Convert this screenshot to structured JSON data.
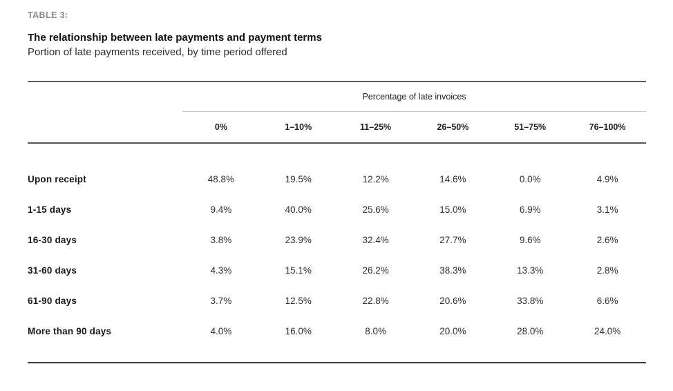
{
  "header": {
    "eyebrow": "TABLE 3:",
    "title": "The relationship between late payments and payment terms",
    "subtitle": "Portion of late payments received, by time period offered"
  },
  "chart_data": {
    "type": "table",
    "title": "The relationship between late payments and payment terms",
    "subtitle": "Portion of late payments received, by time period offered",
    "column_group_label": "Percentage of late invoices",
    "columns": [
      "0%",
      "1–10%",
      "11–25%",
      "26–50%",
      "51–75%",
      "76–100%"
    ],
    "rows": [
      {
        "label": "Upon receipt",
        "values": [
          "48.8%",
          "19.5%",
          "12.2%",
          "14.6%",
          "0.0%",
          "4.9%"
        ]
      },
      {
        "label": "1-15 days",
        "values": [
          "9.4%",
          "40.0%",
          "25.6%",
          "15.0%",
          "6.9%",
          "3.1%"
        ]
      },
      {
        "label": "16-30 days",
        "values": [
          "3.8%",
          "23.9%",
          "32.4%",
          "27.7%",
          "9.6%",
          "2.6%"
        ]
      },
      {
        "label": "31-60 days",
        "values": [
          "4.3%",
          "15.1%",
          "26.2%",
          "38.3%",
          "13.3%",
          "2.8%"
        ]
      },
      {
        "label": "61-90 days",
        "values": [
          "3.7%",
          "12.5%",
          "22.8%",
          "20.6%",
          "33.8%",
          "6.6%"
        ]
      },
      {
        "label": "More than 90 days",
        "values": [
          "4.0%",
          "16.0%",
          "8.0%",
          "20.0%",
          "28.0%",
          "24.0%"
        ]
      }
    ]
  },
  "colors": {
    "eyebrow_gray": "#87898c",
    "rule_dark": "#595a5e",
    "rule_light": "#c9cacb",
    "rule_bottom": "#3d3e41",
    "text": "#17181a",
    "background": "#ffffff"
  }
}
